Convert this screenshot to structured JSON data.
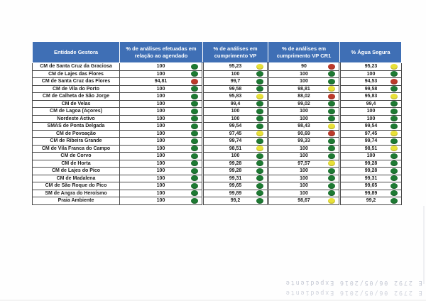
{
  "colors": {
    "header_bg": "#3f6fb5",
    "status_green": "#1e7a33",
    "status_yellow": "#e9e138",
    "status_red": "#bd3a2b"
  },
  "table": {
    "columns": [
      "Entidade Gestora",
      "% de análises efetuadas em relação ao agendado",
      "% de análises em cumprimento VP",
      "% de análises em cumprimento VP CR1",
      "% Água Segura"
    ],
    "rows": [
      {
        "entity": "CM de Santa Cruz da Graciosa",
        "cells": [
          {
            "value": "100",
            "status": "green"
          },
          {
            "value": "95,23",
            "status": "yellow"
          },
          {
            "value": "90",
            "status": "red"
          },
          {
            "value": "95,23",
            "status": "yellow"
          }
        ]
      },
      {
        "entity": "CM de Lajes das Flores",
        "cells": [
          {
            "value": "100",
            "status": "green"
          },
          {
            "value": "100",
            "status": "green"
          },
          {
            "value": "100",
            "status": "green"
          },
          {
            "value": "100",
            "status": "green"
          }
        ]
      },
      {
        "entity": "CM de Santa Cruz das Flores",
        "cells": [
          {
            "value": "94,81",
            "status": "red"
          },
          {
            "value": "99,7",
            "status": "green"
          },
          {
            "value": "100",
            "status": "green"
          },
          {
            "value": "94,53",
            "status": "red"
          }
        ]
      },
      {
        "entity": "CM de Vila do Porto",
        "cells": [
          {
            "value": "100",
            "status": "green"
          },
          {
            "value": "99,58",
            "status": "green"
          },
          {
            "value": "98,81",
            "status": "yellow"
          },
          {
            "value": "99,58",
            "status": "green"
          }
        ]
      },
      {
        "entity": "CM de Calheta de São Jorge",
        "cells": [
          {
            "value": "100",
            "status": "green"
          },
          {
            "value": "95,83",
            "status": "yellow"
          },
          {
            "value": "88,02",
            "status": "red"
          },
          {
            "value": "95,83",
            "status": "yellow"
          }
        ]
      },
      {
        "entity": "CM de Velas",
        "cells": [
          {
            "value": "100",
            "status": "green"
          },
          {
            "value": "99,4",
            "status": "green"
          },
          {
            "value": "99,02",
            "status": "green"
          },
          {
            "value": "99,4",
            "status": "green"
          }
        ]
      },
      {
        "entity": "CM de Lagoa (Açores)",
        "cells": [
          {
            "value": "100",
            "status": "green"
          },
          {
            "value": "100",
            "status": "green"
          },
          {
            "value": "100",
            "status": "green"
          },
          {
            "value": "100",
            "status": "green"
          }
        ]
      },
      {
        "entity": "Nordeste Activo",
        "cells": [
          {
            "value": "100",
            "status": "green"
          },
          {
            "value": "100",
            "status": "green"
          },
          {
            "value": "100",
            "status": "green"
          },
          {
            "value": "100",
            "status": "green"
          }
        ]
      },
      {
        "entity": "SMAS de Ponta Delgada",
        "cells": [
          {
            "value": "100",
            "status": "green"
          },
          {
            "value": "99,54",
            "status": "green"
          },
          {
            "value": "98,43",
            "status": "yellow"
          },
          {
            "value": "99,54",
            "status": "green"
          }
        ]
      },
      {
        "entity": "CM de Povoação",
        "cells": [
          {
            "value": "100",
            "status": "green"
          },
          {
            "value": "97,45",
            "status": "yellow"
          },
          {
            "value": "90,69",
            "status": "red"
          },
          {
            "value": "97,45",
            "status": "yellow"
          }
        ]
      },
      {
        "entity": "CM de Ribeira Grande",
        "cells": [
          {
            "value": "100",
            "status": "green"
          },
          {
            "value": "99,74",
            "status": "green"
          },
          {
            "value": "99,33",
            "status": "green"
          },
          {
            "value": "99,74",
            "status": "green"
          }
        ]
      },
      {
        "entity": "CM de Vila Franca do Campo",
        "cells": [
          {
            "value": "100",
            "status": "green"
          },
          {
            "value": "98,51",
            "status": "yellow"
          },
          {
            "value": "100",
            "status": "green"
          },
          {
            "value": "98,51",
            "status": "yellow"
          }
        ]
      },
      {
        "entity": "CM de Corvo",
        "cells": [
          {
            "value": "100",
            "status": "green"
          },
          {
            "value": "100",
            "status": "green"
          },
          {
            "value": "100",
            "status": "green"
          },
          {
            "value": "100",
            "status": "green"
          }
        ]
      },
      {
        "entity": "CM de Horta",
        "cells": [
          {
            "value": "100",
            "status": "green"
          },
          {
            "value": "99,28",
            "status": "green"
          },
          {
            "value": "97,57",
            "status": "yellow"
          },
          {
            "value": "99,28",
            "status": "green"
          }
        ]
      },
      {
        "entity": "CM de Lajes do Pico",
        "cells": [
          {
            "value": "100",
            "status": "green"
          },
          {
            "value": "99,28",
            "status": "green"
          },
          {
            "value": "100",
            "status": "green"
          },
          {
            "value": "99,28",
            "status": "green"
          }
        ]
      },
      {
        "entity": "CM de Madalena",
        "cells": [
          {
            "value": "100",
            "status": "green"
          },
          {
            "value": "99,31",
            "status": "green"
          },
          {
            "value": "100",
            "status": "green"
          },
          {
            "value": "99,31",
            "status": "green"
          }
        ]
      },
      {
        "entity": "CM de São Roque do Pico",
        "cells": [
          {
            "value": "100",
            "status": "green"
          },
          {
            "value": "99,65",
            "status": "green"
          },
          {
            "value": "100",
            "status": "green"
          },
          {
            "value": "99,65",
            "status": "green"
          }
        ]
      },
      {
        "entity": "SM de Angra do Heroísmo",
        "cells": [
          {
            "value": "100",
            "status": "green"
          },
          {
            "value": "99,89",
            "status": "green"
          },
          {
            "value": "100",
            "status": "green"
          },
          {
            "value": "99,89",
            "status": "green"
          }
        ]
      },
      {
        "entity": "Praia Ambiente",
        "cells": [
          {
            "value": "100",
            "status": "green"
          },
          {
            "value": "99,2",
            "status": "green"
          },
          {
            "value": "98,67",
            "status": "yellow"
          },
          {
            "value": "99,2",
            "status": "green"
          }
        ]
      }
    ]
  },
  "stamp": {
    "line1": "E 2792 06/05/2016 Expediente",
    "line2": "E 2792 06/05/2016 Expediente"
  }
}
